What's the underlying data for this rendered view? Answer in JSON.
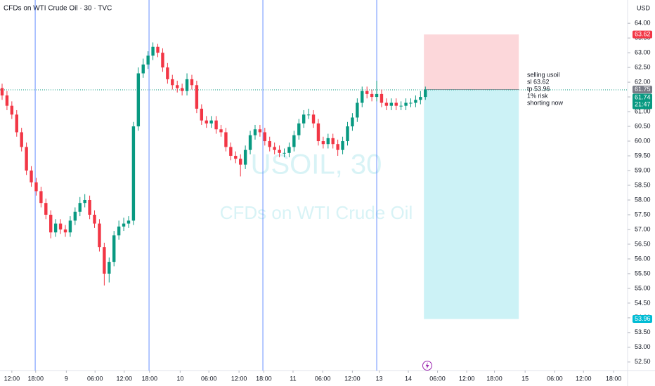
{
  "chart_data": {
    "type": "candlestick",
    "title": "CFDs on WTI Crude Oil · 30 · TVC",
    "currency": "USD",
    "watermark": [
      "USOIL, 30",
      "CFDs on WTI Crude Oil"
    ],
    "up_color": "#089981",
    "down_color": "#f23645",
    "grid": false,
    "x": [
      0,
      1,
      2,
      3,
      4,
      5,
      6,
      7,
      8,
      9,
      10,
      11,
      12,
      13,
      14,
      15,
      16,
      17,
      18,
      19,
      20,
      21,
      22,
      23,
      24,
      25,
      26,
      27,
      28,
      29,
      30,
      31,
      32,
      33,
      34,
      35,
      36,
      37,
      38,
      39,
      40,
      41,
      42,
      43,
      44,
      45,
      46,
      47,
      48,
      49,
      50,
      51,
      52,
      53,
      54,
      55,
      56,
      57,
      58,
      59,
      60,
      61,
      62,
      63,
      64,
      65,
      66,
      67,
      68,
      69,
      70,
      71,
      72,
      73,
      74,
      75,
      76,
      77,
      78,
      79,
      80,
      81,
      82,
      83,
      84,
      85,
      86,
      87
    ],
    "open": [
      61.8,
      61.55,
      61.2,
      60.9,
      60.3,
      59.8,
      59.0,
      58.6,
      58.3,
      57.9,
      57.5,
      56.9,
      57.2,
      57.0,
      56.9,
      57.3,
      57.6,
      57.9,
      58.0,
      57.5,
      57.2,
      56.4,
      55.5,
      55.9,
      56.8,
      57.1,
      57.2,
      57.3,
      60.5,
      62.3,
      62.6,
      62.9,
      63.2,
      63.0,
      62.5,
      62.1,
      61.9,
      61.8,
      61.7,
      62.1,
      61.9,
      61.1,
      60.7,
      60.6,
      60.7,
      60.4,
      60.3,
      59.8,
      59.5,
      59.4,
      59.2,
      59.7,
      60.2,
      60.4,
      60.3,
      60.0,
      59.8,
      59.7,
      59.6,
      59.6,
      59.8,
      60.2,
      60.6,
      60.9,
      60.9,
      60.6,
      60.0,
      59.9,
      60.1,
      59.9,
      59.7,
      60.0,
      60.5,
      60.8,
      61.3,
      61.7,
      61.6,
      61.5,
      61.6,
      61.3,
      61.2,
      61.3,
      61.2,
      61.2,
      61.3,
      61.3,
      61.4,
      61.5
    ],
    "high": [
      61.95,
      61.7,
      61.35,
      61.05,
      60.45,
      59.95,
      59.15,
      58.75,
      58.45,
      58.05,
      57.65,
      57.35,
      57.35,
      57.15,
      57.45,
      57.75,
      58.1,
      58.2,
      58.15,
      57.65,
      57.35,
      56.55,
      56.05,
      56.95,
      57.3,
      57.4,
      57.45,
      60.65,
      62.5,
      62.8,
      63.05,
      63.35,
      63.3,
      63.15,
      62.65,
      62.25,
      62.05,
      61.95,
      62.3,
      62.25,
      62.05,
      61.25,
      60.85,
      60.85,
      60.85,
      60.55,
      60.45,
      59.95,
      59.65,
      59.55,
      59.85,
      60.35,
      60.55,
      60.55,
      60.45,
      60.15,
      59.95,
      59.85,
      59.75,
      59.95,
      60.35,
      60.75,
      61.05,
      61.1,
      61.05,
      60.75,
      60.15,
      60.25,
      60.25,
      60.05,
      60.15,
      60.65,
      60.95,
      61.45,
      61.85,
      61.85,
      61.75,
      62.05,
      61.75,
      61.45,
      61.45,
      61.45,
      61.35,
      61.45,
      61.45,
      61.55,
      61.7,
      61.85
    ],
    "low": [
      61.4,
      61.05,
      60.75,
      60.15,
      59.65,
      58.85,
      58.45,
      58.15,
      57.75,
      57.35,
      56.7,
      56.75,
      56.85,
      56.75,
      56.75,
      57.15,
      57.45,
      57.75,
      57.35,
      57.05,
      56.25,
      55.1,
      55.2,
      55.75,
      56.65,
      56.95,
      57.05,
      57.15,
      60.35,
      62.15,
      62.45,
      62.75,
      62.85,
      62.35,
      61.95,
      61.75,
      61.65,
      61.55,
      61.55,
      61.75,
      60.95,
      60.55,
      60.45,
      60.45,
      60.25,
      60.15,
      59.65,
      59.35,
      59.25,
      58.8,
      59.05,
      59.55,
      60.05,
      60.15,
      59.85,
      59.65,
      59.55,
      59.45,
      59.45,
      59.45,
      59.65,
      60.05,
      60.45,
      60.75,
      60.45,
      59.85,
      59.75,
      59.75,
      59.75,
      59.5,
      59.55,
      59.85,
      60.35,
      60.65,
      61.15,
      61.45,
      61.35,
      61.35,
      61.15,
      61.05,
      61.05,
      61.05,
      61.05,
      61.05,
      61.15,
      61.15,
      61.25,
      61.4
    ],
    "close": [
      61.55,
      61.2,
      60.9,
      60.3,
      59.8,
      59.0,
      58.6,
      58.3,
      57.9,
      57.5,
      56.9,
      57.2,
      57.0,
      56.9,
      57.3,
      57.6,
      57.9,
      58.0,
      57.5,
      57.2,
      56.4,
      55.5,
      55.9,
      56.8,
      57.1,
      57.2,
      57.3,
      60.5,
      62.3,
      62.6,
      62.9,
      63.2,
      63.0,
      62.5,
      62.1,
      61.9,
      61.8,
      61.7,
      62.1,
      61.9,
      61.1,
      60.7,
      60.6,
      60.7,
      60.4,
      60.3,
      59.8,
      59.5,
      59.4,
      59.2,
      59.7,
      60.2,
      60.4,
      60.3,
      60.0,
      59.8,
      59.7,
      59.6,
      59.6,
      59.8,
      60.2,
      60.6,
      60.9,
      60.9,
      60.6,
      60.0,
      59.9,
      60.1,
      59.9,
      59.7,
      60.0,
      60.5,
      60.8,
      61.3,
      61.7,
      61.6,
      61.5,
      61.6,
      61.3,
      61.2,
      61.3,
      61.2,
      61.2,
      61.3,
      61.3,
      61.4,
      61.5,
      61.75
    ],
    "xlim": [
      0,
      129
    ],
    "xticks": [
      {
        "value": 2.0,
        "label": "12:00"
      },
      {
        "value": 6.9,
        "label": "18:00"
      },
      {
        "value": 13.2,
        "label": "9"
      },
      {
        "value": 19.1,
        "label": "06:00"
      },
      {
        "value": 25.1,
        "label": "12:00"
      },
      {
        "value": 30.3,
        "label": "18:00"
      },
      {
        "value": 36.6,
        "label": "10"
      },
      {
        "value": 42.5,
        "label": "06:00"
      },
      {
        "value": 48.7,
        "label": "12:00"
      },
      {
        "value": 53.8,
        "label": "18:00"
      },
      {
        "value": 59.8,
        "label": "11"
      },
      {
        "value": 65.9,
        "label": "06:00"
      },
      {
        "value": 72,
        "label": "12:00"
      },
      {
        "value": 77.5,
        "label": "13"
      },
      {
        "value": 83.5,
        "label": "14"
      },
      {
        "value": 89.5,
        "label": "06:00"
      },
      {
        "value": 95.5,
        "label": "12:00"
      },
      {
        "value": 101.2,
        "label": "18:00"
      },
      {
        "value": 107.5,
        "label": "15"
      },
      {
        "value": 113.6,
        "label": "06:00"
      },
      {
        "value": 119.5,
        "label": "12:00"
      },
      {
        "value": 125.7,
        "label": "18:00"
      }
    ],
    "session_breaks": [
      6.8,
      30.2,
      53.6,
      77.0
    ],
    "ylim": [
      52.21,
      64.79
    ],
    "yticks": [
      {
        "value": 52.5,
        "label": "52.50"
      },
      {
        "value": 53,
        "label": "53.00"
      },
      {
        "value": 53.5,
        "label": "53.50"
      },
      {
        "value": 54,
        "label": "54.00"
      },
      {
        "value": 54.5,
        "label": "54.50"
      },
      {
        "value": 55,
        "label": "55.00"
      },
      {
        "value": 55.5,
        "label": "55.50"
      },
      {
        "value": 56,
        "label": "56.00"
      },
      {
        "value": 56.5,
        "label": "56.50"
      },
      {
        "value": 57,
        "label": "57.00"
      },
      {
        "value": 57.5,
        "label": "57.50"
      },
      {
        "value": 58,
        "label": "58.00"
      },
      {
        "value": 58.5,
        "label": "58.50"
      },
      {
        "value": 59,
        "label": "59.00"
      },
      {
        "value": 59.5,
        "label": "59.50"
      },
      {
        "value": 60,
        "label": "60.00"
      },
      {
        "value": 60.5,
        "label": "60.50"
      },
      {
        "value": 61,
        "label": "61.00"
      },
      {
        "value": 61.5,
        "label": "61.50"
      },
      {
        "value": 62,
        "label": "62.00"
      },
      {
        "value": 62.5,
        "label": "62.50"
      },
      {
        "value": 63,
        "label": "63.00"
      },
      {
        "value": 63.5,
        "label": "63.50"
      },
      {
        "value": 64,
        "label": "64.00"
      }
    ],
    "position": {
      "entry": 61.75,
      "stop": 63.62,
      "target": 53.96,
      "x_start": 86.7,
      "x_end": 106.2
    },
    "last_price": 61.74,
    "countdown": "21:47",
    "annotation": [
      "selling usoil",
      "sl 63.62",
      "tp 53.96",
      "1% risk",
      "shorting now"
    ]
  }
}
